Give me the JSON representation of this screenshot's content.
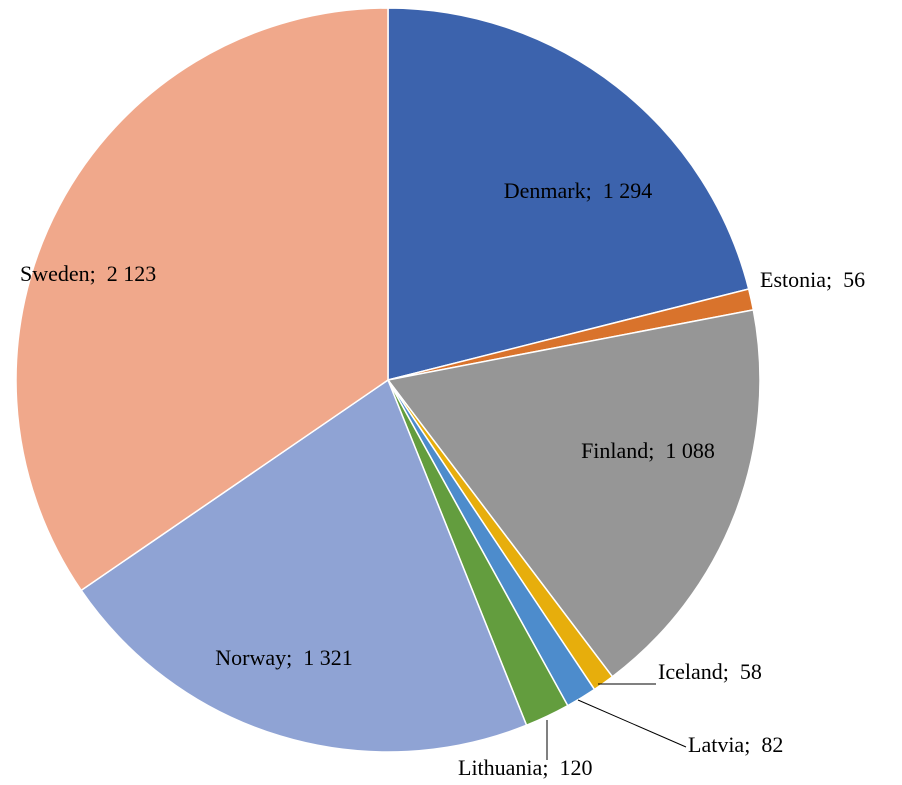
{
  "chart_data": {
    "type": "pie",
    "categories": [
      "Denmark",
      "Estonia",
      "Finland",
      "Iceland",
      "Latvia",
      "Lithuania",
      "Norway",
      "Sweden"
    ],
    "values": [
      1294,
      56,
      1088,
      58,
      82,
      120,
      1321,
      2123
    ],
    "value_labels": [
      "1 294",
      "56",
      "1 088",
      "58",
      "82",
      "120",
      "1 321",
      "2 123"
    ],
    "label_separator": ";",
    "colors": [
      "#3c63ad",
      "#d9732c",
      "#969696",
      "#e7ae0c",
      "#4d8ccc",
      "#639d3e",
      "#8fa3d4",
      "#f0a88b"
    ]
  }
}
